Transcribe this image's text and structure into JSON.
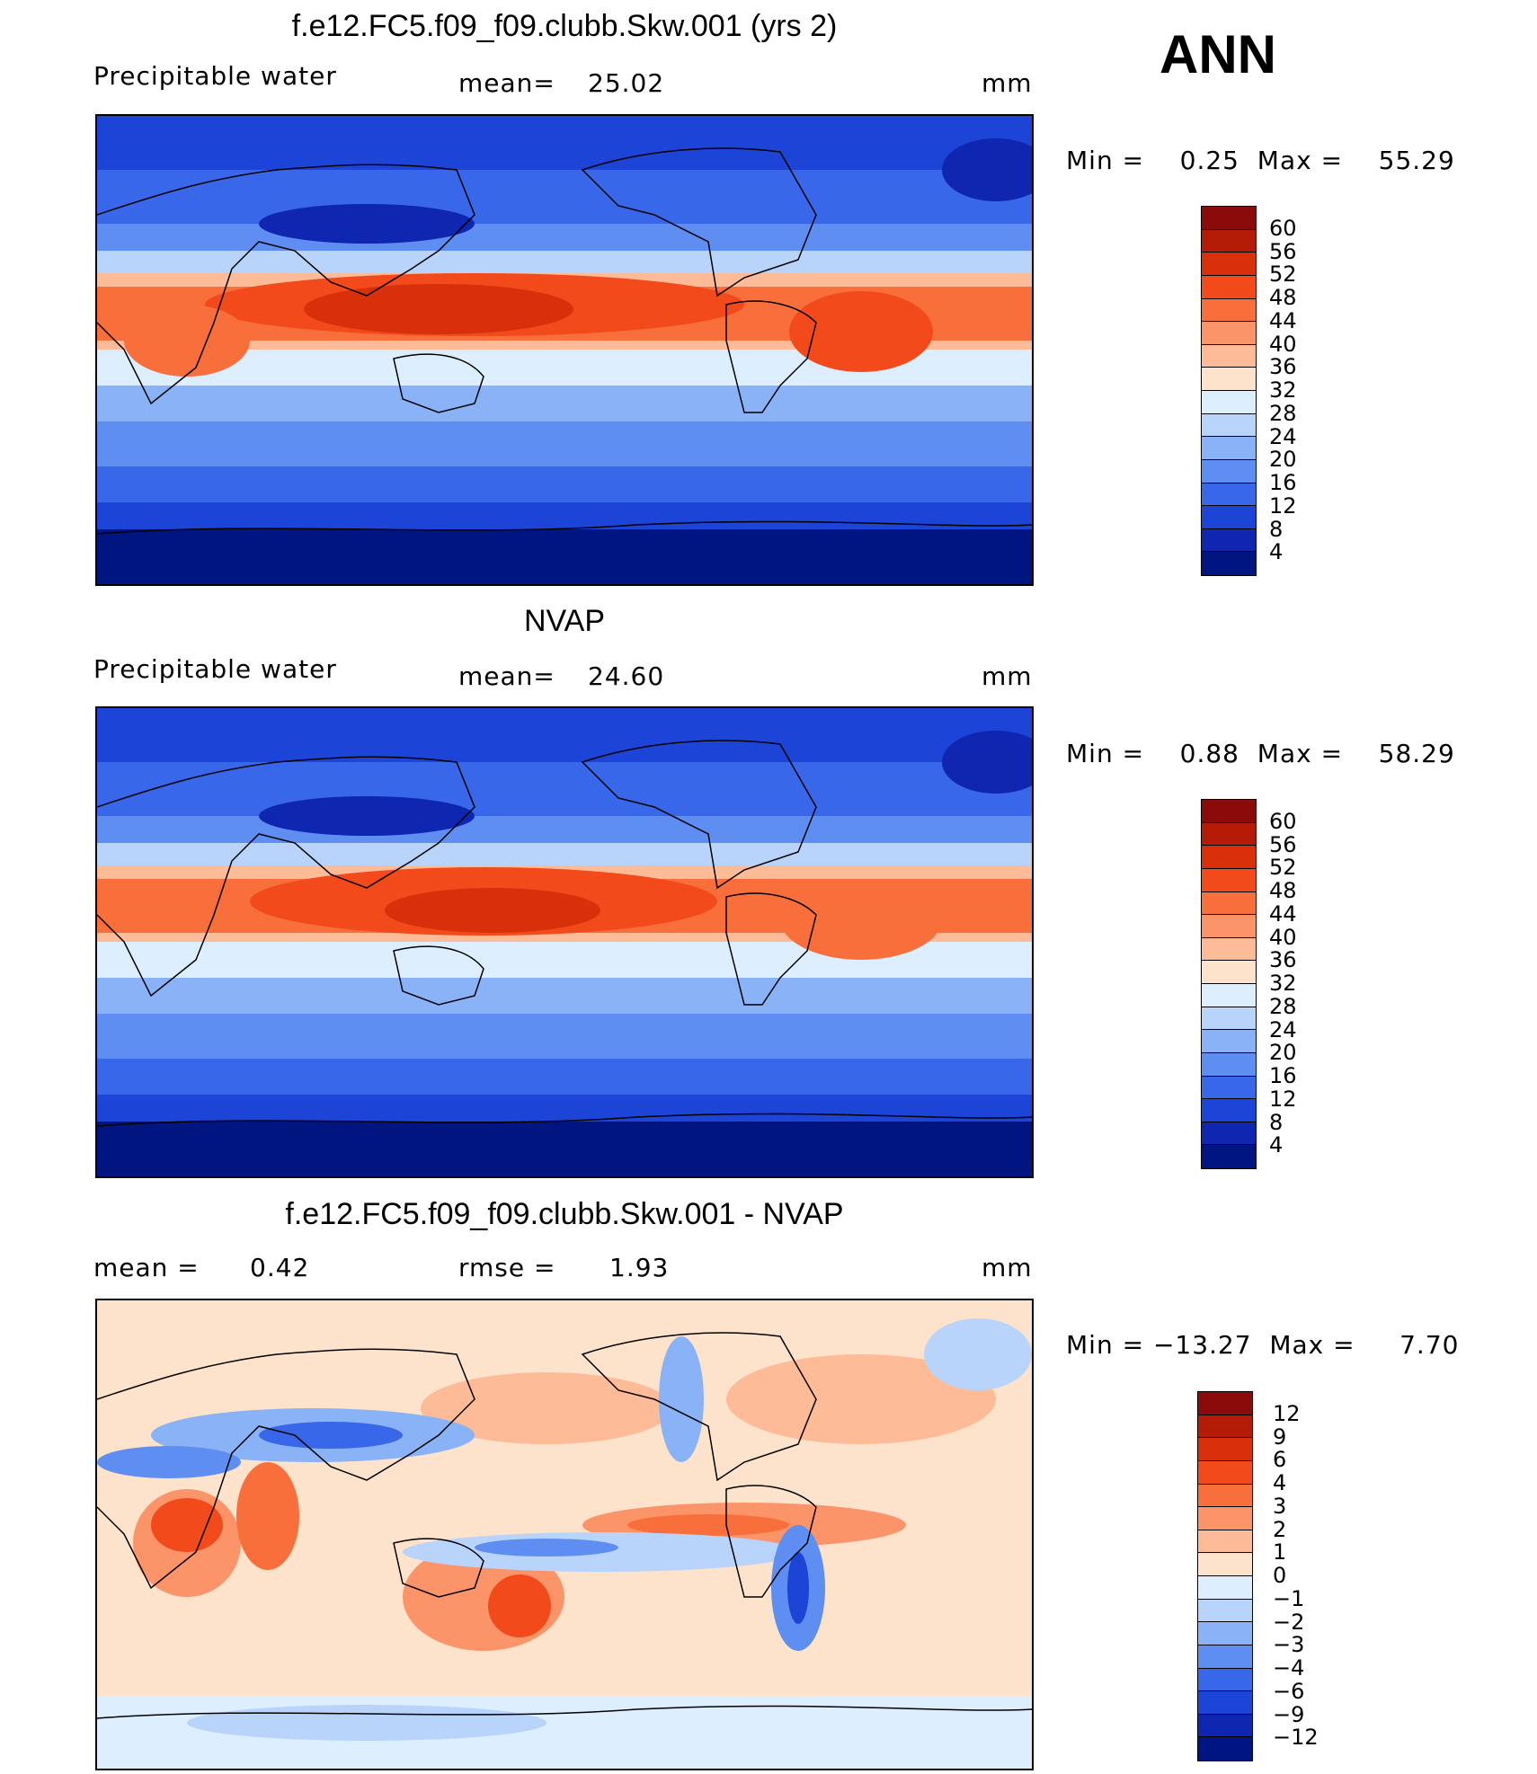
{
  "season": "ANN",
  "units": "mm",
  "panels": [
    {
      "title": "f.e12.FC5.f09_f09.clubb.Skw.001 (yrs 2)",
      "variable": "Precipitable water",
      "stat_label": "mean=",
      "stat_value": "25.02",
      "minmax": "Min =    0.25  Max =    55.29",
      "colorbar": {
        "levels": [
          "60",
          "56",
          "52",
          "48",
          "44",
          "40",
          "36",
          "32",
          "28",
          "24",
          "20",
          "16",
          "12",
          "8",
          "4"
        ],
        "colors": [
          "#8b0a0a",
          "#b51c08",
          "#d8300a",
          "#f24a1a",
          "#f86f3c",
          "#fb9569",
          "#fdbb98",
          "#fde3cc",
          "#ddeeff",
          "#b9d4fb",
          "#8ab3f7",
          "#5e8ef1",
          "#3867ea",
          "#1c44d6",
          "#0e26b0",
          "#001580"
        ]
      }
    },
    {
      "title": "NVAP",
      "variable": "Precipitable water",
      "stat_label": "mean=",
      "stat_value": "24.60",
      "minmax": "Min =    0.88  Max =    58.29",
      "colorbar": {
        "levels": [
          "60",
          "56",
          "52",
          "48",
          "44",
          "40",
          "36",
          "32",
          "28",
          "24",
          "20",
          "16",
          "12",
          "8",
          "4"
        ],
        "colors": [
          "#8b0a0a",
          "#b51c08",
          "#d8300a",
          "#f24a1a",
          "#f86f3c",
          "#fb9569",
          "#fdbb98",
          "#fde3cc",
          "#ddeeff",
          "#b9d4fb",
          "#8ab3f7",
          "#5e8ef1",
          "#3867ea",
          "#1c44d6",
          "#0e26b0",
          "#001580"
        ]
      }
    },
    {
      "title": "f.e12.FC5.f09_f09.clubb.Skw.001 - NVAP",
      "stat_label": "mean =",
      "stat_value": "0.42",
      "rmse_label": "rmse =",
      "rmse_value": "1.93",
      "minmax": "Min = −13.27  Max =     7.70",
      "colorbar": {
        "levels": [
          "12",
          "9",
          "6",
          "4",
          "3",
          "2",
          "1",
          "0",
          "−1",
          "−2",
          "−3",
          "−4",
          "−6",
          "−9",
          "−12"
        ],
        "colors": [
          "#8b0a0a",
          "#b51c08",
          "#d8300a",
          "#f24a1a",
          "#f86f3c",
          "#fb9569",
          "#fdbb98",
          "#fde3cc",
          "#ddeeff",
          "#b9d4fb",
          "#8ab3f7",
          "#5e8ef1",
          "#3867ea",
          "#1c44d6",
          "#0e26b0",
          "#001580"
        ]
      }
    }
  ]
}
